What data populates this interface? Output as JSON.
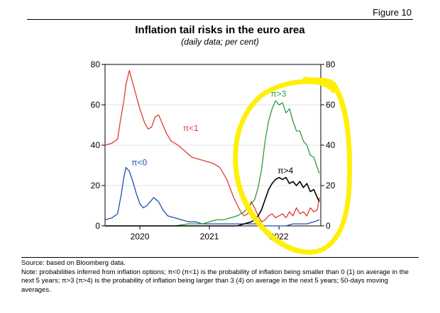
{
  "figure_label": "Figure 10",
  "title": "Inflation tail risks in the euro area",
  "subtitle": "(daily data; per cent)",
  "source": "Source: based on Bloomberg data.",
  "note": "Note: probabilities inferred from inflation options; π<0 (π<1) is the probability of inflation being smaller than 0 (1) on average in the next 5 years; π>3 (π>4) is the probability of inflation being larger than 3 (4) on average in the next 5 years; 50-days moving averages.",
  "colors": {
    "pi_lt1": "#e03a2f",
    "pi_lt0": "#1f4fa8",
    "pi_gt3": "#2e9a3a",
    "pi_gt4": "#000000",
    "highlight": "#ffee00"
  },
  "chart_data": {
    "type": "line",
    "xlim": [
      2019.5,
      2022.6
    ],
    "ylim": [
      0,
      80
    ],
    "x_ticks": [
      2020,
      2021,
      2022
    ],
    "y_ticks_left": [
      0,
      20,
      40,
      60,
      80
    ],
    "y_ticks_right": [
      0,
      20,
      40,
      60,
      80
    ],
    "grid": "horizontal",
    "series": [
      {
        "name": "π<1",
        "color": "#e03a2f",
        "x": [
          2019.5,
          2019.6,
          2019.68,
          2019.72,
          2019.77,
          2019.8,
          2019.85,
          2019.92,
          2020.0,
          2020.07,
          2020.12,
          2020.17,
          2020.22,
          2020.27,
          2020.32,
          2020.38,
          2020.45,
          2020.55,
          2020.65,
          2020.75,
          2020.85,
          2020.95,
          2021.05,
          2021.15,
          2021.25,
          2021.35,
          2021.45,
          2021.5,
          2021.55,
          2021.6,
          2021.65,
          2021.7,
          2021.75,
          2021.8,
          2021.85,
          2021.9,
          2021.95,
          2022.0,
          2022.05,
          2022.1,
          2022.15,
          2022.2,
          2022.25,
          2022.3,
          2022.35,
          2022.4,
          2022.45,
          2022.5,
          2022.55,
          2022.58
        ],
        "y": [
          40,
          41,
          43,
          52,
          62,
          70,
          77,
          68,
          58,
          51,
          48,
          49,
          54,
          55,
          51,
          46,
          42,
          40,
          37,
          34,
          33,
          32,
          31,
          29,
          23,
          14,
          7,
          5,
          6,
          12,
          9,
          5,
          2,
          3,
          5,
          6,
          4,
          5,
          6,
          4,
          7,
          5,
          9,
          6,
          7,
          5,
          9,
          7,
          8,
          14
        ]
      },
      {
        "name": "π<0",
        "color": "#1f4fa8",
        "x": [
          2019.5,
          2019.6,
          2019.68,
          2019.73,
          2019.77,
          2019.8,
          2019.85,
          2019.9,
          2019.95,
          2020.0,
          2020.05,
          2020.1,
          2020.15,
          2020.2,
          2020.27,
          2020.33,
          2020.4,
          2020.5,
          2020.6,
          2020.7,
          2020.8,
          2020.9,
          2021.0,
          2021.1,
          2021.2,
          2021.3,
          2021.4,
          2021.5,
          2021.6,
          2021.7,
          2021.8,
          2021.9,
          2022.0,
          2022.1,
          2022.2,
          2022.3,
          2022.4,
          2022.5,
          2022.58
        ],
        "y": [
          3,
          4,
          6,
          15,
          24,
          29,
          27,
          22,
          16,
          11,
          9,
          10,
          12,
          14,
          12,
          8,
          5,
          4,
          3,
          2,
          2,
          1,
          1,
          1,
          1,
          1,
          1,
          1,
          1,
          1,
          0,
          0,
          0,
          0,
          1,
          1,
          1,
          2,
          3
        ]
      },
      {
        "name": "π>3",
        "color": "#2e9a3a",
        "x": [
          2019.5,
          2019.7,
          2019.9,
          2020.1,
          2020.3,
          2020.5,
          2020.7,
          2020.9,
          2021.0,
          2021.1,
          2021.2,
          2021.3,
          2021.4,
          2021.5,
          2021.55,
          2021.6,
          2021.65,
          2021.7,
          2021.75,
          2021.8,
          2021.85,
          2021.9,
          2021.95,
          2022.0,
          2022.05,
          2022.1,
          2022.15,
          2022.2,
          2022.25,
          2022.3,
          2022.35,
          2022.4,
          2022.45,
          2022.5,
          2022.55,
          2022.58
        ],
        "y": [
          0,
          0,
          0,
          0,
          0,
          0,
          1,
          1,
          2,
          3,
          3,
          4,
          5,
          7,
          9,
          11,
          13,
          19,
          28,
          42,
          52,
          58,
          62,
          60,
          61,
          56,
          58,
          52,
          47,
          47,
          42,
          40,
          35,
          34,
          29,
          26
        ]
      },
      {
        "name": "π>4",
        "color": "#000000",
        "x": [
          2019.5,
          2019.8,
          2020.1,
          2020.4,
          2020.7,
          2021.0,
          2021.2,
          2021.4,
          2021.5,
          2021.6,
          2021.65,
          2021.7,
          2021.75,
          2021.8,
          2021.85,
          2021.9,
          2021.95,
          2022.0,
          2022.05,
          2022.1,
          2022.15,
          2022.2,
          2022.25,
          2022.3,
          2022.35,
          2022.4,
          2022.45,
          2022.5,
          2022.55,
          2022.58
        ],
        "y": [
          0,
          0,
          0,
          0,
          0,
          0,
          0,
          0,
          1,
          2,
          3,
          5,
          8,
          13,
          18,
          21,
          23,
          24,
          23,
          24,
          21,
          22,
          20,
          22,
          19,
          21,
          17,
          18,
          14,
          12
        ]
      }
    ]
  }
}
